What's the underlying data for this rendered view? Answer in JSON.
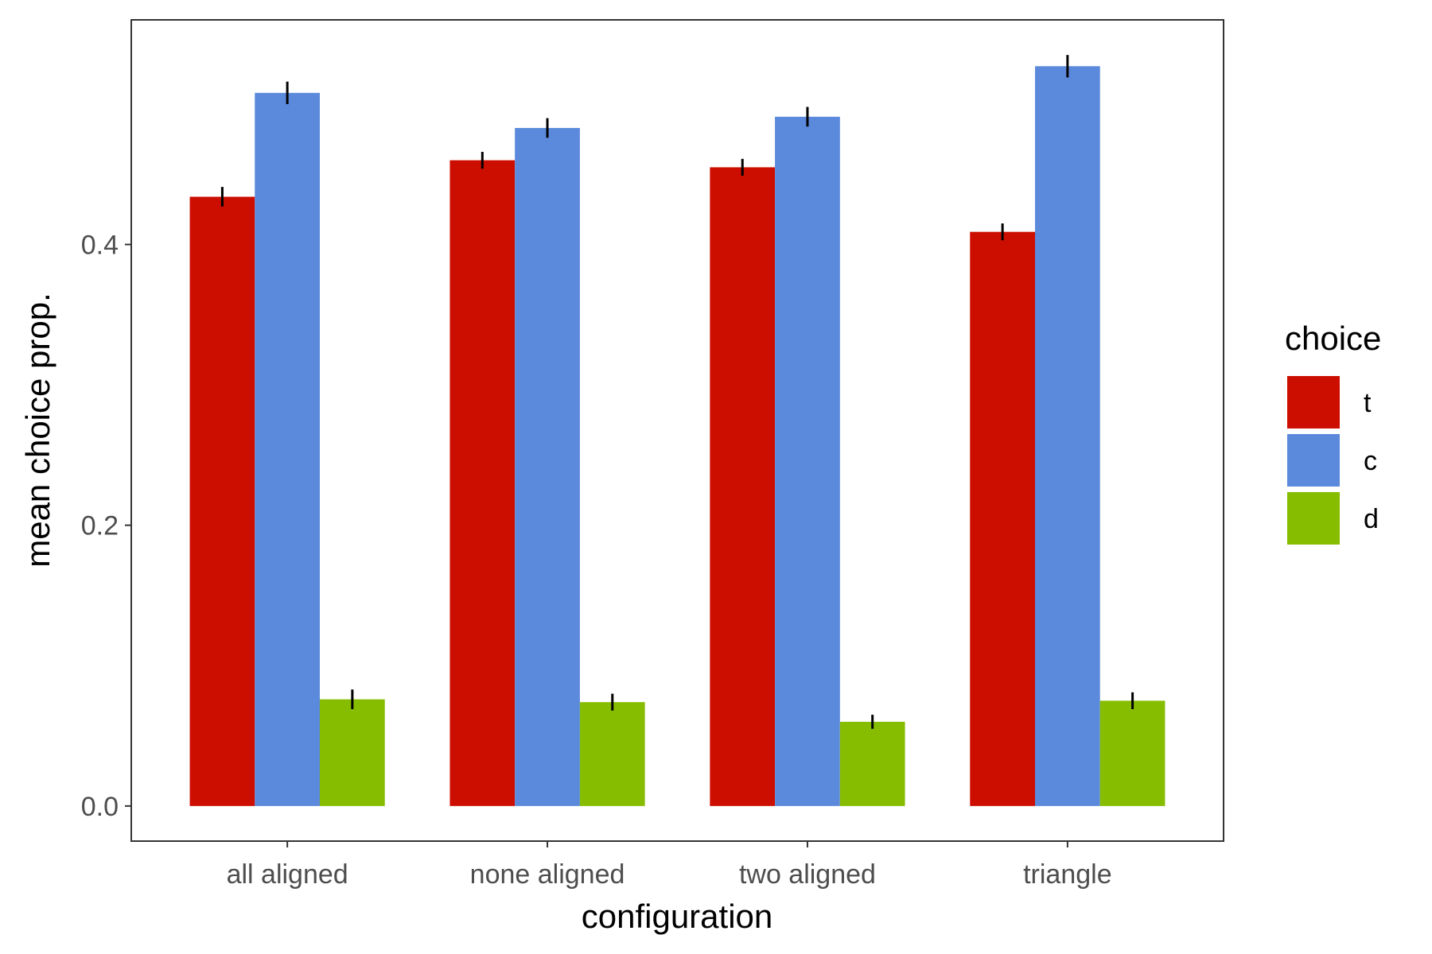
{
  "chart_data": {
    "type": "bar",
    "title": "",
    "xlabel": "configuration",
    "ylabel": "mean choice prop.",
    "categories": [
      "all aligned",
      "none aligned",
      "two aligned",
      "triangle"
    ],
    "series": [
      {
        "name": "t",
        "color": "#cc0e00",
        "values": [
          0.434,
          0.46,
          0.455,
          0.409
        ],
        "err": [
          0.007,
          0.006,
          0.006,
          0.006
        ]
      },
      {
        "name": "c",
        "color": "#5b89db",
        "values": [
          0.508,
          0.483,
          0.491,
          0.527
        ],
        "err": [
          0.008,
          0.007,
          0.007,
          0.008
        ]
      },
      {
        "name": "d",
        "color": "#86bd00",
        "values": [
          0.076,
          0.074,
          0.06,
          0.075
        ],
        "err": [
          0.007,
          0.006,
          0.005,
          0.006
        ]
      }
    ],
    "ylim": [
      -0.025,
      0.56
    ],
    "yticks": [
      0.0,
      0.2,
      0.4
    ],
    "ytick_labels": [
      "0.0",
      "0.2",
      "0.4"
    ],
    "grid": false,
    "legend": {
      "title": "choice",
      "position": "right"
    }
  }
}
